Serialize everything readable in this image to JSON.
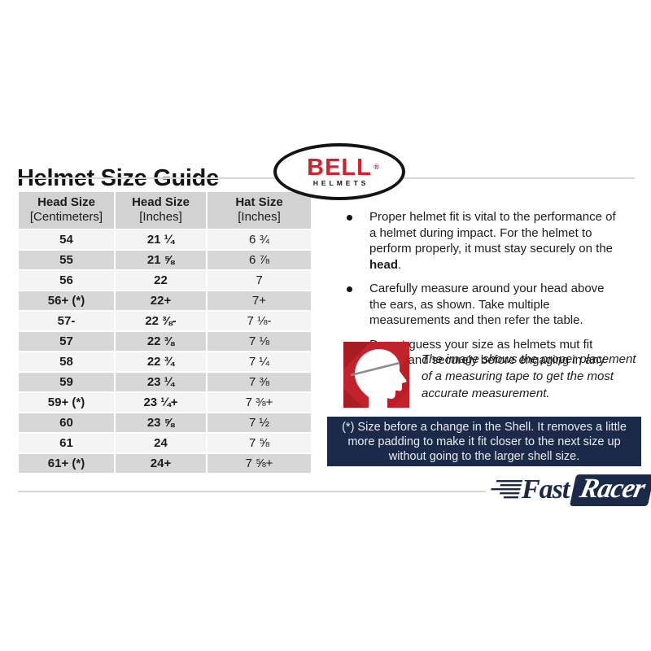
{
  "page": {
    "title": "Helmet Size Guide"
  },
  "bell_logo": {
    "brand": "BELL",
    "registered": "®",
    "sub": "HELMETS"
  },
  "table": {
    "columns": [
      {
        "title": "Head Size",
        "unit": "[Centimeters]"
      },
      {
        "title": "Head Size",
        "unit": "[Inches]"
      },
      {
        "title": "Hat Size",
        "unit": "[Inches]"
      }
    ],
    "rows": [
      [
        "54",
        "21 ¼",
        "6 ¾"
      ],
      [
        "55",
        "21 ⅝",
        "6 ⅞"
      ],
      [
        "56",
        "22",
        "7"
      ],
      [
        "56+ (*)",
        "22+",
        "7+"
      ],
      [
        "57-",
        "22 ⅜-",
        "7 ⅛-"
      ],
      [
        "57",
        "22 ⅜",
        "7 ⅛"
      ],
      [
        "58",
        "22 ¾",
        "7 ¼"
      ],
      [
        "59",
        "23 ¼",
        "7 ⅜"
      ],
      [
        "59+ (*)",
        "23 ¼+",
        "7 ⅜+"
      ],
      [
        "60",
        "23 ⅝",
        "7 ½"
      ],
      [
        "61",
        "24",
        "7 ⅝"
      ],
      [
        "61+ (*)",
        "24+",
        "7 ⅝+"
      ]
    ]
  },
  "bullets": {
    "item1_pre": "Proper helmet fit is vital to the performance of a helmet during impact. For the helmet to perform properly, it must stay securely on the ",
    "item1_bold": "head",
    "item1_post": ".",
    "item2": "Carefully measure around your head above the ears, as shown. Take multiple measurements and then refer the table.",
    "item3": "Do not guess your size as helmets mut fit snugly and securely before engaging in any activity."
  },
  "measurement": {
    "caption": "The image shows the proper placement of a measuring tape to get the most accurate measurement."
  },
  "shell_note": "(*) Size before a change in the Shell. It removes a little more padding to make it fit closer to the next size up without going to the larger shell size.",
  "fastracer_logo": {
    "fast": "Fast",
    "racer": "Racer"
  },
  "colors": {
    "navy": "#1b2a49",
    "accent-red": "#d6202a",
    "icon-red": "#c2222b",
    "rule-gray": "#d9d6d6",
    "header-gray": "#d2d2d2",
    "row-light": "#f4f4f4",
    "row-dark": "#d7d7d7",
    "text-black": "#1c1c1c",
    "banner-text": "#e9ecf3"
  }
}
